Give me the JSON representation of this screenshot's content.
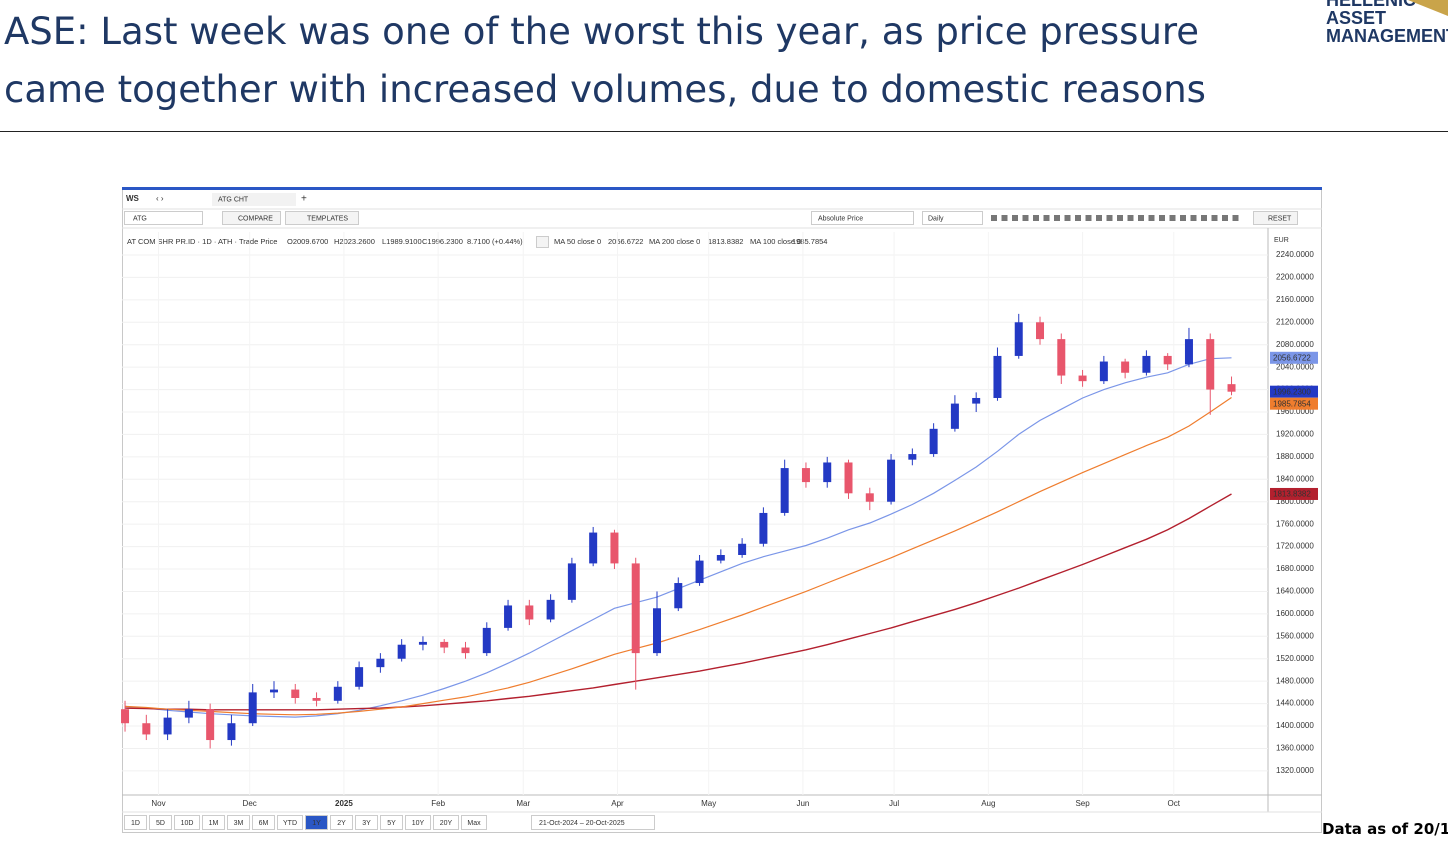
{
  "header": {
    "title_lines": [
      "ASE: Last week was one of the worst this year, as price pressure",
      "came together with increased volumes, due to domestic reasons"
    ],
    "logo": [
      "HELLENIC",
      "ASSET",
      "MANAGEMENT"
    ]
  },
  "footnote": "Data as of 20/1",
  "ui": {
    "tab": "WS",
    "window": "ATG CHT",
    "symbol": "ATG",
    "compare": "COMPARE",
    "templates": "TEMPLATES",
    "mode": "Absolute Price",
    "freq": "Daily",
    "reset": "RESET",
    "currency": "EUR",
    "legend_prefix": "AT COM SHR PR.ID · 1D · ATH · Trade Price",
    "ohlc": [
      "O2009.6700",
      "H2023.2600",
      "L1989.9100",
      "C1996.2300"
    ],
    "change": "8.7100 (+0.44%)",
    "ranges": [
      "1D",
      "5D",
      "10D",
      "1M",
      "3M",
      "6M",
      "YTD",
      "1Y",
      "2Y",
      "3Y",
      "5Y",
      "10Y",
      "20Y",
      "Max"
    ],
    "selected_range": "1Y",
    "date_range": "21-Oct-2024 – 20-Oct-2025"
  },
  "chart_data": {
    "type": "candlestick",
    "up_color": "#2339c4",
    "down_color": "#e8566c",
    "grid": true,
    "x": [
      "2024-10-21",
      "2024-10-28",
      "2024-11-04",
      "2024-11-11",
      "2024-11-18",
      "2024-11-25",
      "2024-12-02",
      "2024-12-09",
      "2024-12-16",
      "2024-12-23",
      "2024-12-30",
      "2025-01-06",
      "2025-01-13",
      "2025-01-20",
      "2025-01-27",
      "2025-02-03",
      "2025-02-10",
      "2025-02-17",
      "2025-02-24",
      "2025-03-03",
      "2025-03-10",
      "2025-03-17",
      "2025-03-24",
      "2025-03-31",
      "2025-04-07",
      "2025-04-14",
      "2025-04-21",
      "2025-04-28",
      "2025-05-05",
      "2025-05-12",
      "2025-05-19",
      "2025-05-26",
      "2025-06-02",
      "2025-06-09",
      "2025-06-16",
      "2025-06-23",
      "2025-06-30",
      "2025-07-07",
      "2025-07-14",
      "2025-07-21",
      "2025-07-28",
      "2025-08-04",
      "2025-08-11",
      "2025-08-18",
      "2025-08-25",
      "2025-09-01",
      "2025-09-08",
      "2025-09-15",
      "2025-09-22",
      "2025-09-29",
      "2025-10-06",
      "2025-10-13",
      "2025-10-20"
    ],
    "open": [
      1430,
      1405,
      1385,
      1415,
      1430,
      1375,
      1405,
      1460,
      1465,
      1450,
      1445,
      1470,
      1505,
      1520,
      1545,
      1550,
      1540,
      1530,
      1575,
      1615,
      1590,
      1625,
      1690,
      1745,
      1690,
      1530,
      1610,
      1655,
      1695,
      1705,
      1725,
      1780,
      1860,
      1835,
      1870,
      1815,
      1800,
      1875,
      1885,
      1930,
      1975,
      1985,
      2060,
      2120,
      2090,
      2025,
      2015,
      2050,
      2030,
      2060,
      2045,
      2090,
      2009.67
    ],
    "high": [
      1445,
      1420,
      1430,
      1445,
      1440,
      1420,
      1475,
      1480,
      1475,
      1460,
      1480,
      1515,
      1530,
      1555,
      1560,
      1555,
      1550,
      1585,
      1625,
      1625,
      1635,
      1700,
      1755,
      1750,
      1700,
      1640,
      1665,
      1705,
      1715,
      1735,
      1790,
      1875,
      1870,
      1880,
      1875,
      1825,
      1885,
      1895,
      1940,
      1990,
      1995,
      2075,
      2135,
      2130,
      2100,
      2035,
      2060,
      2055,
      2070,
      2065,
      2110,
      2100,
      2023.26
    ],
    "low": [
      1390,
      1375,
      1375,
      1405,
      1360,
      1365,
      1400,
      1450,
      1440,
      1435,
      1440,
      1465,
      1495,
      1515,
      1535,
      1530,
      1520,
      1525,
      1570,
      1580,
      1585,
      1620,
      1685,
      1680,
      1465,
      1525,
      1605,
      1650,
      1690,
      1700,
      1720,
      1775,
      1825,
      1825,
      1805,
      1785,
      1795,
      1865,
      1880,
      1925,
      1960,
      1980,
      2055,
      2080,
      2010,
      2005,
      2010,
      2020,
      2025,
      2035,
      2040,
      1955,
      1989.91
    ],
    "close": [
      1405,
      1385,
      1415,
      1430,
      1375,
      1405,
      1460,
      1465,
      1450,
      1445,
      1470,
      1505,
      1520,
      1545,
      1550,
      1540,
      1530,
      1575,
      1615,
      1590,
      1625,
      1690,
      1745,
      1690,
      1530,
      1610,
      1655,
      1695,
      1705,
      1725,
      1780,
      1860,
      1835,
      1870,
      1815,
      1800,
      1875,
      1885,
      1930,
      1975,
      1985,
      2060,
      2120,
      2090,
      2025,
      2015,
      2050,
      2030,
      2060,
      2045,
      2090,
      2000,
      1996.23
    ],
    "close_tag": "1996.2300",
    "series": [
      {
        "name": "MA 50 close 0",
        "color": "#7b96e8",
        "tag": "2056.6722",
        "values": [
          1435,
          1432,
          1428,
          1425,
          1422,
          1420,
          1418,
          1417,
          1416,
          1418,
          1422,
          1428,
          1436,
          1445,
          1455,
          1467,
          1480,
          1495,
          1512,
          1530,
          1550,
          1570,
          1590,
          1610,
          1620,
          1630,
          1645,
          1660,
          1675,
          1690,
          1702,
          1712,
          1722,
          1735,
          1750,
          1762,
          1778,
          1795,
          1815,
          1838,
          1862,
          1890,
          1920,
          1945,
          1965,
          1985,
          2000,
          2012,
          2022,
          2030,
          2045,
          2055,
          2056.6722
        ]
      },
      {
        "name": "MA 200 close 0",
        "color": "#b3202e",
        "tag": "1813.8382",
        "values": [
          1432,
          1431,
          1430,
          1430,
          1429,
          1429,
          1429,
          1429,
          1429,
          1429,
          1430,
          1431,
          1432,
          1434,
          1436,
          1439,
          1442,
          1445,
          1449,
          1453,
          1458,
          1463,
          1468,
          1474,
          1480,
          1486,
          1492,
          1498,
          1505,
          1512,
          1520,
          1528,
          1536,
          1545,
          1555,
          1565,
          1575,
          1586,
          1597,
          1608,
          1620,
          1633,
          1646,
          1660,
          1674,
          1688,
          1703,
          1718,
          1733,
          1750,
          1770,
          1792,
          1813.8382
        ]
      },
      {
        "name": "MA 100 close 0",
        "color": "#ef7d2e",
        "tag": "1985.7854",
        "values": [
          1435,
          1433,
          1430,
          1428,
          1426,
          1424,
          1422,
          1421,
          1420,
          1421,
          1423,
          1426,
          1430,
          1434,
          1440,
          1446,
          1452,
          1460,
          1468,
          1478,
          1490,
          1502,
          1515,
          1528,
          1538,
          1548,
          1560,
          1572,
          1585,
          1598,
          1612,
          1626,
          1640,
          1655,
          1670,
          1685,
          1700,
          1716,
          1732,
          1748,
          1765,
          1782,
          1800,
          1818,
          1835,
          1852,
          1868,
          1884,
          1900,
          1915,
          1935,
          1960,
          1985.7854
        ]
      }
    ],
    "xlim": [
      "2024-10-20",
      "2025-11-01"
    ],
    "xticks": [
      {
        "value": "2024-11-01",
        "label": "Nov"
      },
      {
        "value": "2024-12-01",
        "label": "Dec"
      },
      {
        "value": "2025-01-01",
        "label": "2025"
      },
      {
        "value": "2025-02-01",
        "label": "Feb"
      },
      {
        "value": "2025-03-01",
        "label": "Mar"
      },
      {
        "value": "2025-04-01",
        "label": "Apr"
      },
      {
        "value": "2025-05-01",
        "label": "May"
      },
      {
        "value": "2025-06-01",
        "label": "Jun"
      },
      {
        "value": "2025-07-01",
        "label": "Jul"
      },
      {
        "value": "2025-08-01",
        "label": "Aug"
      },
      {
        "value": "2025-09-01",
        "label": "Sep"
      },
      {
        "value": "2025-10-01",
        "label": "Oct"
      }
    ],
    "ylim": [
      1277,
      2281
    ],
    "yticks": [
      {
        "value": 1320,
        "label": "1320.0000"
      },
      {
        "value": 1360,
        "label": "1360.0000"
      },
      {
        "value": 1400,
        "label": "1400.0000"
      },
      {
        "value": 1440,
        "label": "1440.0000"
      },
      {
        "value": 1480,
        "label": "1480.0000"
      },
      {
        "value": 1520,
        "label": "1520.0000"
      },
      {
        "value": 1560,
        "label": "1560.0000"
      },
      {
        "value": 1600,
        "label": "1600.0000"
      },
      {
        "value": 1640,
        "label": "1640.0000"
      },
      {
        "value": 1680,
        "label": "1680.0000"
      },
      {
        "value": 1720,
        "label": "1720.0000"
      },
      {
        "value": 1760,
        "label": "1760.0000"
      },
      {
        "value": 1800,
        "label": "1800.0000"
      },
      {
        "value": 1840,
        "label": "1840.0000"
      },
      {
        "value": 1880,
        "label": "1880.0000"
      },
      {
        "value": 1920,
        "label": "1920.0000"
      },
      {
        "value": 1960,
        "label": "1960.0000"
      },
      {
        "value": 2000,
        "label": "2000.0000"
      },
      {
        "value": 2040,
        "label": "2040.0000"
      },
      {
        "value": 2080,
        "label": "2080.0000"
      },
      {
        "value": 2120,
        "label": "2120.0000"
      },
      {
        "value": 2160,
        "label": "2160.0000"
      },
      {
        "value": 2200,
        "label": "2200.0000"
      },
      {
        "value": 2240,
        "label": "2240.0000"
      }
    ]
  }
}
